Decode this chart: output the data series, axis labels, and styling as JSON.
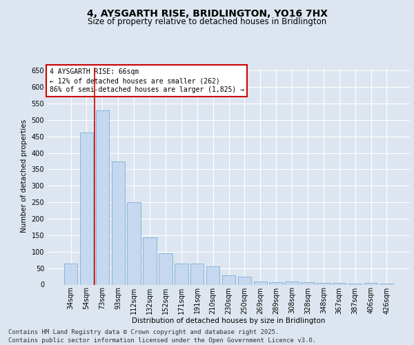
{
  "title": "4, AYSGARTH RISE, BRIDLINGTON, YO16 7HX",
  "subtitle": "Size of property relative to detached houses in Bridlington",
  "xlabel": "Distribution of detached houses by size in Bridlington",
  "ylabel": "Number of detached properties",
  "categories": [
    "34sqm",
    "54sqm",
    "73sqm",
    "93sqm",
    "112sqm",
    "132sqm",
    "152sqm",
    "171sqm",
    "191sqm",
    "210sqm",
    "230sqm",
    "250sqm",
    "269sqm",
    "289sqm",
    "308sqm",
    "328sqm",
    "348sqm",
    "367sqm",
    "387sqm",
    "406sqm",
    "426sqm"
  ],
  "values": [
    63,
    463,
    530,
    375,
    250,
    143,
    95,
    63,
    63,
    55,
    28,
    25,
    10,
    8,
    10,
    7,
    6,
    5,
    4,
    5,
    4
  ],
  "bar_color": "#c5d8ef",
  "bar_edge_color": "#7aafd4",
  "vline_x": 1.5,
  "vline_color": "#cc0000",
  "annotation_text": "4 AYSGARTH RISE: 66sqm\n← 12% of detached houses are smaller (262)\n86% of semi-detached houses are larger (1,825) →",
  "annotation_box_facecolor": "#ffffff",
  "annotation_box_edgecolor": "#cc0000",
  "ylim": [
    0,
    660
  ],
  "yticks": [
    0,
    50,
    100,
    150,
    200,
    250,
    300,
    350,
    400,
    450,
    500,
    550,
    600,
    650
  ],
  "background_color": "#dde6f0",
  "title_fontsize": 10,
  "subtitle_fontsize": 8.5,
  "axis_fontsize": 7.5,
  "tick_fontsize": 7,
  "annotation_fontsize": 7,
  "footer_text": "Contains HM Land Registry data © Crown copyright and database right 2025.\nContains public sector information licensed under the Open Government Licence v3.0.",
  "footer_fontsize": 6.5
}
